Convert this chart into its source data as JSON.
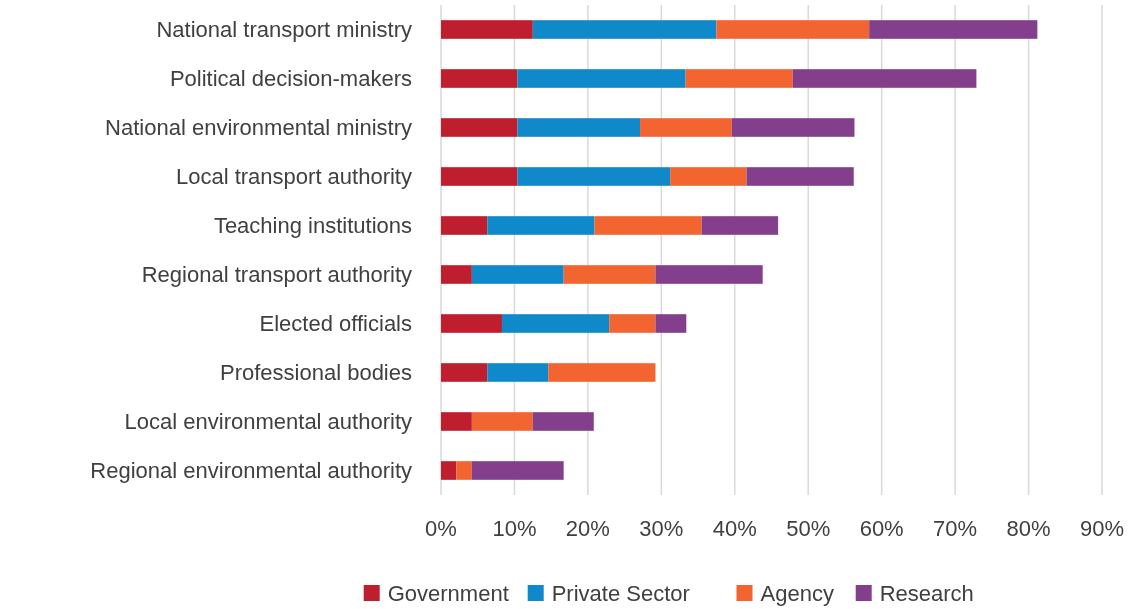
{
  "chart_data": {
    "type": "bar",
    "orientation": "horizontal",
    "stacked": true,
    "categories": [
      "National transport ministry",
      "Political decision-makers",
      "National environmental ministry",
      "Local transport authority",
      "Teaching institutions",
      "Regional transport authority",
      "Elected officials",
      "Professional bodies",
      "Local environmental authority",
      "Regional environmental authority"
    ],
    "series": [
      {
        "name": "Government",
        "color": "#be1e2d",
        "values": [
          12.5,
          10.4,
          10.4,
          10.4,
          6.3,
          4.2,
          8.3,
          6.3,
          4.2,
          2.1
        ]
      },
      {
        "name": "Private Sector",
        "color": "#1089ca",
        "values": [
          25,
          22.9,
          16.7,
          20.8,
          14.6,
          12.5,
          14.6,
          8.3,
          0,
          0
        ]
      },
      {
        "name": "Agency",
        "color": "#f26531",
        "values": [
          20.8,
          14.6,
          12.5,
          10.4,
          14.6,
          12.5,
          6.3,
          14.6,
          8.3,
          2.1
        ]
      },
      {
        "name": "Research",
        "color": "#833f8c",
        "values": [
          22.9,
          25,
          16.7,
          14.6,
          10.4,
          14.6,
          4.2,
          0,
          8.3,
          12.5
        ]
      }
    ],
    "xlim": [
      0,
      90
    ],
    "xticks": [
      {
        "value": 0,
        "label": "0%"
      },
      {
        "value": 10,
        "label": "10%"
      },
      {
        "value": 20,
        "label": "20%"
      },
      {
        "value": 30,
        "label": "30%"
      },
      {
        "value": 40,
        "label": "40%"
      },
      {
        "value": 50,
        "label": "50%"
      },
      {
        "value": 60,
        "label": "60%"
      },
      {
        "value": 70,
        "label": "70%"
      },
      {
        "value": 80,
        "label": "80%"
      },
      {
        "value": 90,
        "label": "90%"
      }
    ],
    "grid": "x",
    "legend": "bottom"
  }
}
